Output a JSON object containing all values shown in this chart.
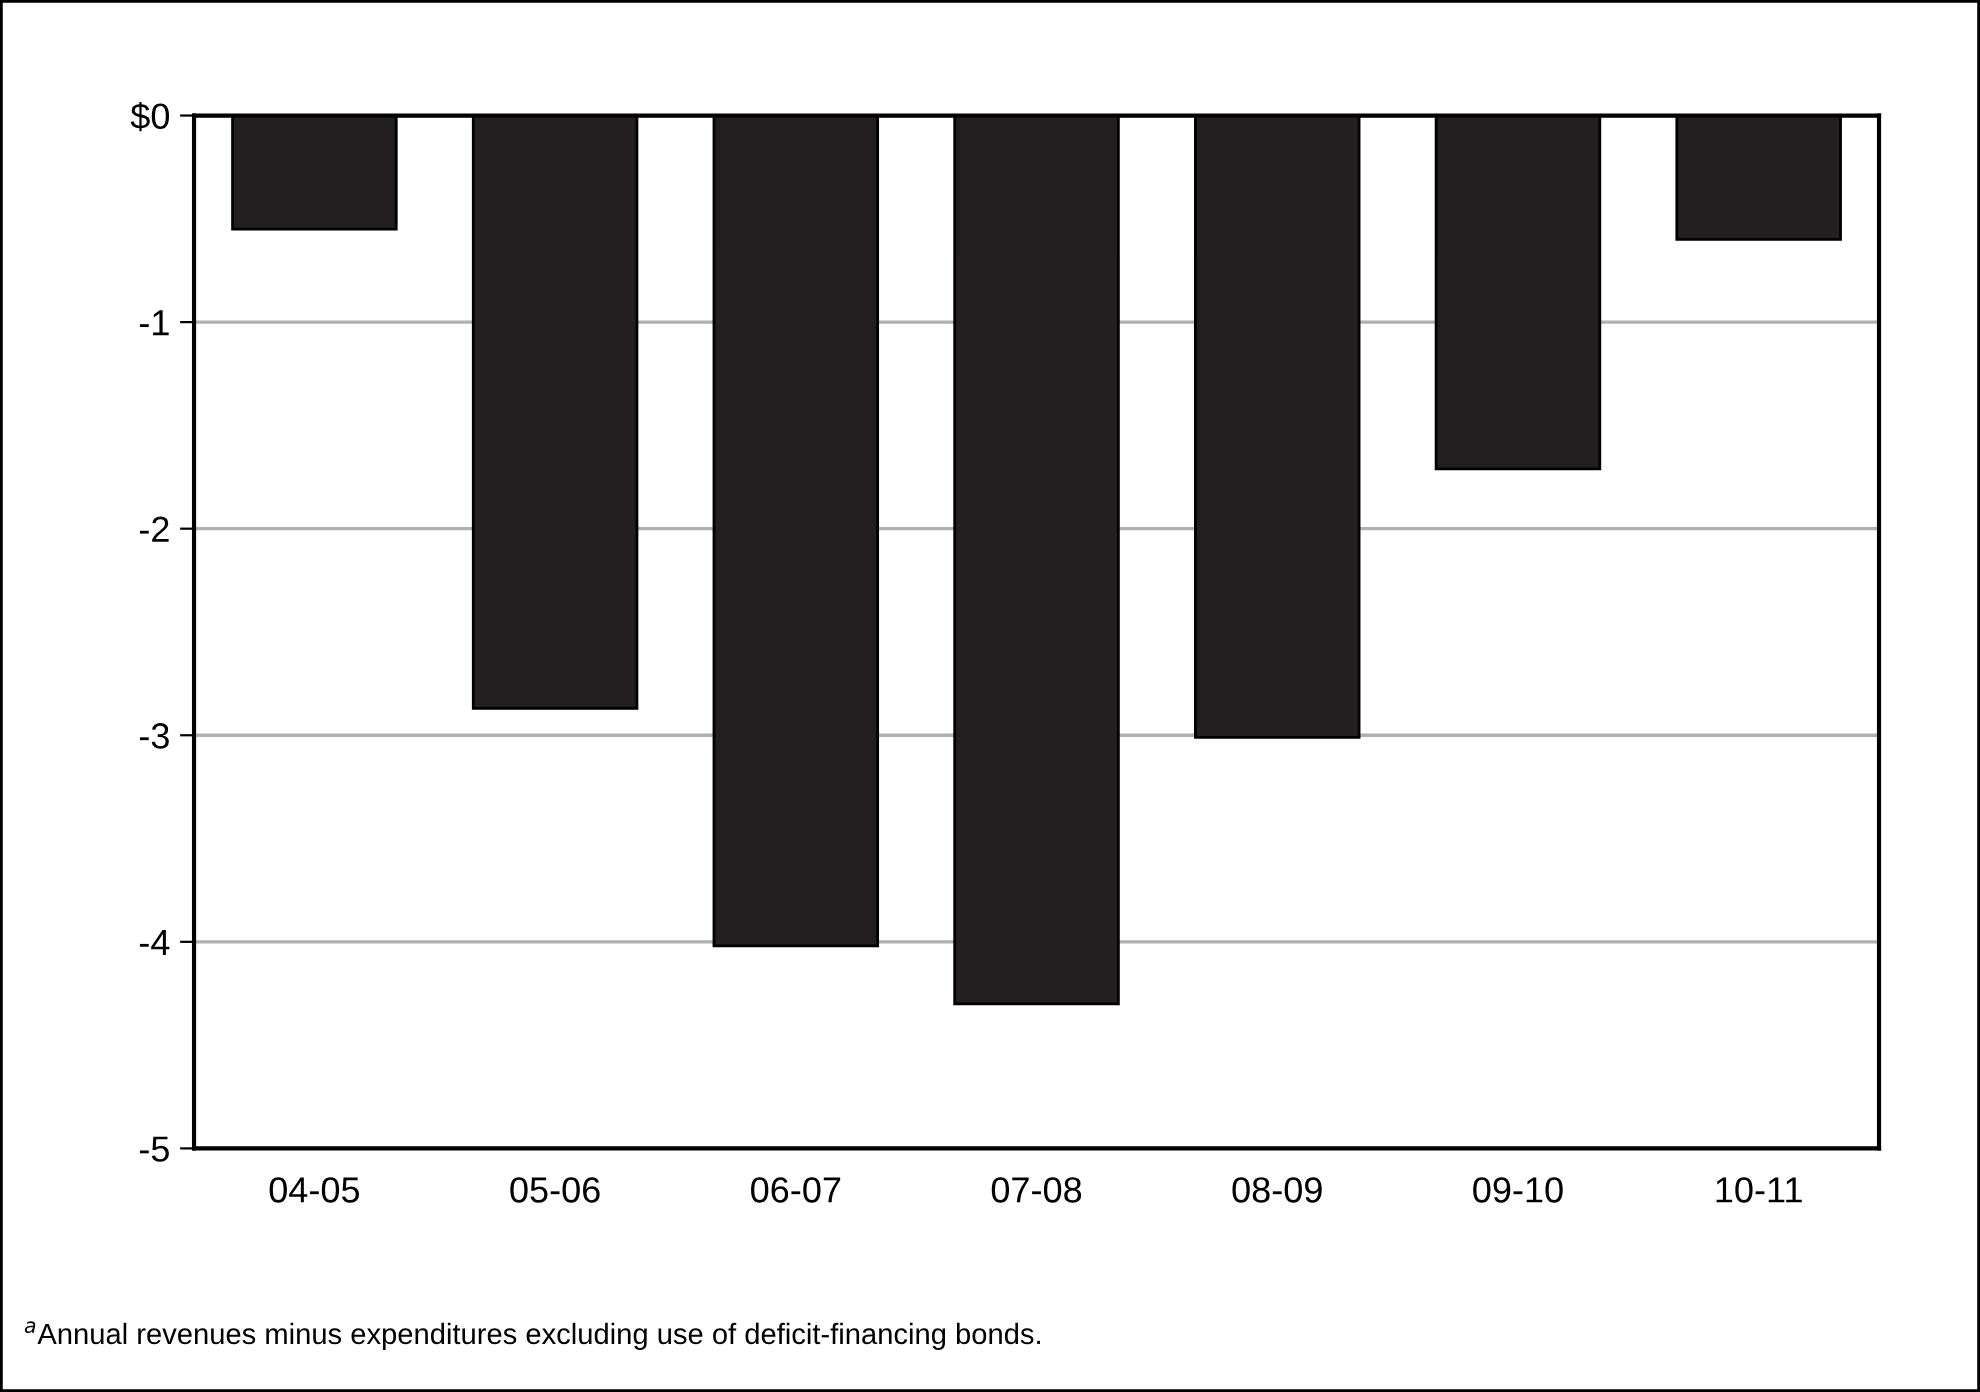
{
  "chart_data": {
    "type": "bar",
    "categories": [
      "04-05",
      "05-06",
      "06-07",
      "07-08",
      "08-09",
      "09-10",
      "10-11"
    ],
    "values": [
      -0.55,
      -2.87,
      -4.02,
      -4.3,
      -3.01,
      -1.71,
      -0.6
    ],
    "color": "#231f20",
    "ylim": [
      -5,
      0
    ],
    "yticks": [
      {
        "value": -5,
        "label": "-5"
      },
      {
        "value": -4,
        "label": "-4"
      },
      {
        "value": -3,
        "label": "-3"
      },
      {
        "value": -2,
        "label": "-2"
      },
      {
        "value": -1,
        "label": "-1"
      },
      {
        "value": 0,
        "label": "$0"
      }
    ],
    "grid": "y",
    "annotations": [
      "$^{a}$Annual revenues minus expenditures excluding use of deficit-financing bonds."
    ]
  }
}
